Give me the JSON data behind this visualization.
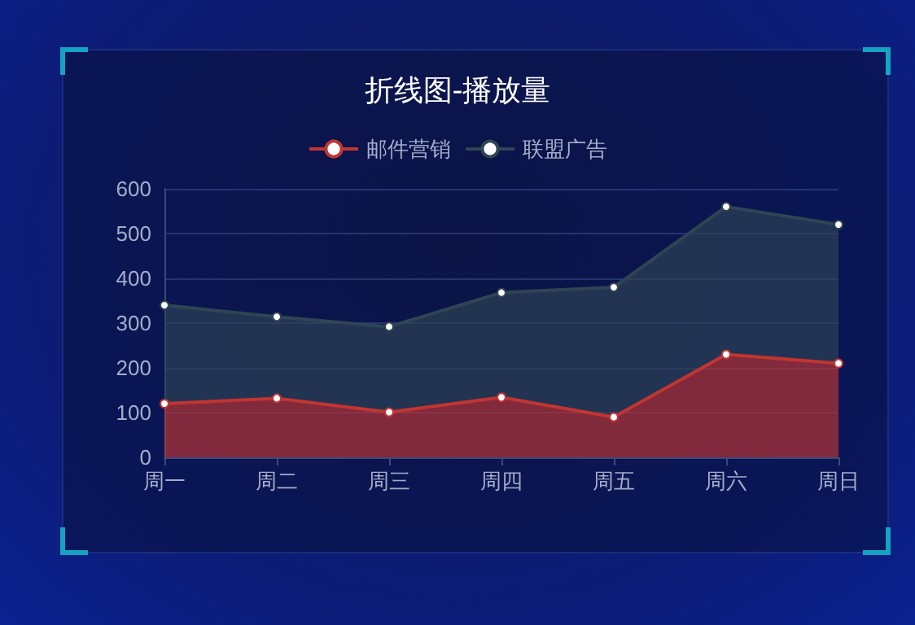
{
  "chart_data": {
    "type": "area",
    "title": "折线图-播放量",
    "categories": [
      "周一",
      "周二",
      "周三",
      "周四",
      "周五",
      "周六",
      "周日"
    ],
    "series": [
      {
        "name": "邮件营销",
        "color": "#c23531",
        "values": [
          120,
          132,
          101,
          134,
          90,
          230,
          210
        ]
      },
      {
        "name": "联盟广告",
        "color": "#2f4554",
        "values": [
          220,
          182,
          191,
          234,
          290,
          330,
          310
        ]
      }
    ],
    "stacked": true,
    "ylim": [
      0,
      600
    ],
    "yticks": [
      0,
      100,
      200,
      300,
      400,
      500,
      600
    ],
    "grid": "y",
    "legend": "top",
    "marker": "circle"
  }
}
